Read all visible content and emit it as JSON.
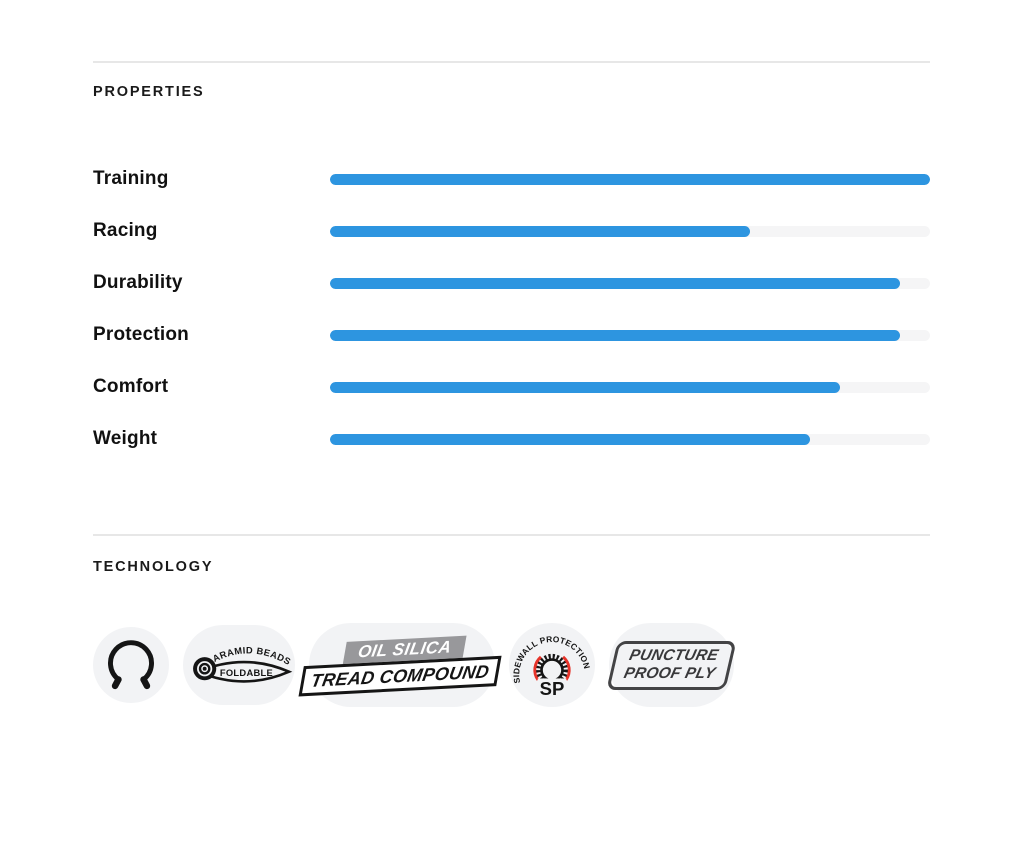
{
  "properties_section": {
    "title": "PROPERTIES",
    "items": [
      {
        "label": "Training",
        "value": 100
      },
      {
        "label": "Racing",
        "value": 70
      },
      {
        "label": "Durability",
        "value": 95
      },
      {
        "label": "Protection",
        "value": 95
      },
      {
        "label": "Comfort",
        "value": 85
      },
      {
        "label": "Weight",
        "value": 80
      }
    ]
  },
  "technology_section": {
    "title": "TECHNOLOGY",
    "badges": [
      {
        "icon": "foldable-bead-icon"
      },
      {
        "icon": "aramid-beads-foldable-icon",
        "arc_text": "ARAMID BEADS",
        "inner_text": "FOLDABLE"
      },
      {
        "icon": "oil-silica-tread-compound-icon",
        "line1": "OIL SILICA",
        "line2": "TREAD COMPOUND"
      },
      {
        "icon": "sidewall-protection-icon",
        "arc_text": "SIDEWALL PROTECTION",
        "inner_text": "SP"
      },
      {
        "icon": "puncture-proof-ply-icon",
        "line1": "PUNCTURE",
        "line2": "PROOF PLY"
      }
    ]
  },
  "colors": {
    "bar_fill_blue": "#2d95e0",
    "bar_track_gray": "#f5f5f6",
    "badge_bg_gray": "#f2f3f5",
    "badge_red_accent": "#e63329",
    "text_dark": "#151515",
    "divider_gray": "#e7e7e7"
  }
}
